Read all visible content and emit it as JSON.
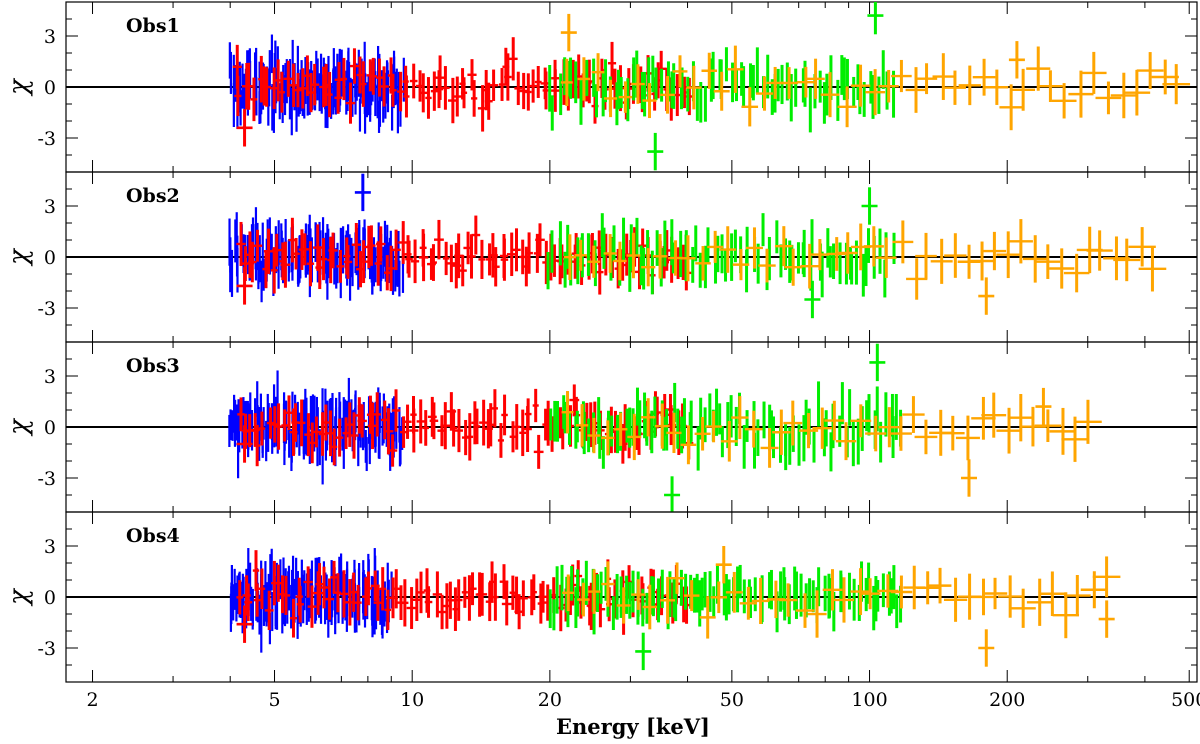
{
  "chart_data": {
    "type": "scatter",
    "xlabel": "Energy [keV]",
    "ylabel": "χ",
    "x_scale": "log",
    "xlim": [
      1.75,
      520
    ],
    "x_ticks": [
      2,
      5,
      10,
      20,
      50,
      100,
      200,
      500
    ],
    "x_tick_labels": [
      "2",
      "5",
      "10",
      "20",
      "50",
      "100",
      "200",
      "500"
    ],
    "ylim": [
      -5,
      5
    ],
    "y_ticks": [
      -3,
      0,
      3
    ],
    "y_tick_labels": [
      "-3",
      "0",
      "3"
    ],
    "zero_line": true,
    "grid": false,
    "colors": {
      "blue": "#0000ff",
      "red": "#ff0000",
      "green": "#00ee00",
      "orange": "#ffa500"
    },
    "panels": [
      {
        "label": "Obs1",
        "series": [
          {
            "color": "blue",
            "x_range": [
              4.0,
              9.5
            ],
            "n": 150,
            "spread": 1.5
          },
          {
            "color": "red",
            "x_range": [
              4.1,
              40
            ],
            "n": 95,
            "spread": 1.1
          },
          {
            "color": "green",
            "x_range": [
              20,
              112
            ],
            "n": 80,
            "spread": 1.2
          },
          {
            "color": "orange",
            "x_range": [
              22,
              470
            ],
            "n": 45,
            "spread": 1.1
          }
        ],
        "highlights": [
          {
            "color": "orange",
            "x": 22,
            "y": 3.2
          },
          {
            "color": "orange",
            "x": 210,
            "y": 1.6
          },
          {
            "color": "green",
            "x": 103,
            "y": 4.2
          },
          {
            "color": "green",
            "x": 34,
            "y": -3.8
          },
          {
            "color": "red",
            "x": 4.3,
            "y": -2.4
          }
        ]
      },
      {
        "label": "Obs2",
        "series": [
          {
            "color": "blue",
            "x_range": [
              4.0,
              9.5
            ],
            "n": 150,
            "spread": 1.4
          },
          {
            "color": "red",
            "x_range": [
              4.2,
              40
            ],
            "n": 95,
            "spread": 1.0
          },
          {
            "color": "green",
            "x_range": [
              20,
              112
            ],
            "n": 80,
            "spread": 1.1
          },
          {
            "color": "orange",
            "x_range": [
              22,
              420
            ],
            "n": 45,
            "spread": 1.0
          }
        ],
        "highlights": [
          {
            "color": "blue",
            "x": 7.8,
            "y": 3.8
          },
          {
            "color": "green",
            "x": 100,
            "y": 3.0
          },
          {
            "color": "orange",
            "x": 180,
            "y": -2.3
          },
          {
            "color": "green",
            "x": 75,
            "y": -2.5
          },
          {
            "color": "red",
            "x": 4.3,
            "y": -1.7
          }
        ]
      },
      {
        "label": "Obs3",
        "series": [
          {
            "color": "blue",
            "x_range": [
              4.0,
              9.5
            ],
            "n": 150,
            "spread": 1.5
          },
          {
            "color": "red",
            "x_range": [
              4.2,
              40
            ],
            "n": 95,
            "spread": 1.1
          },
          {
            "color": "green",
            "x_range": [
              20,
              118
            ],
            "n": 90,
            "spread": 1.3
          },
          {
            "color": "orange",
            "x_range": [
              22,
              300
            ],
            "n": 40,
            "spread": 1.0
          }
        ],
        "highlights": [
          {
            "color": "green",
            "x": 104,
            "y": 3.8
          },
          {
            "color": "green",
            "x": 37,
            "y": -4.0
          },
          {
            "color": "orange",
            "x": 165,
            "y": -3.0
          },
          {
            "color": "orange",
            "x": 240,
            "y": 1.2
          },
          {
            "color": "red",
            "x": 4.3,
            "y": -1.0
          }
        ]
      },
      {
        "label": "Obs4",
        "series": [
          {
            "color": "blue",
            "x_range": [
              4.0,
              9.0
            ],
            "n": 150,
            "spread": 1.5
          },
          {
            "color": "red",
            "x_range": [
              4.2,
              40
            ],
            "n": 95,
            "spread": 1.0
          },
          {
            "color": "green",
            "x_range": [
              20,
              118
            ],
            "n": 95,
            "spread": 1.0
          },
          {
            "color": "orange",
            "x_range": [
              22,
              330
            ],
            "n": 40,
            "spread": 1.0
          }
        ],
        "highlights": [
          {
            "color": "orange",
            "x": 180,
            "y": -3.0
          },
          {
            "color": "orange",
            "x": 330,
            "y": -1.3
          },
          {
            "color": "green",
            "x": 32,
            "y": -3.2
          },
          {
            "color": "orange",
            "x": 48,
            "y": 1.9
          },
          {
            "color": "red",
            "x": 4.3,
            "y": -1.6
          }
        ]
      }
    ]
  }
}
